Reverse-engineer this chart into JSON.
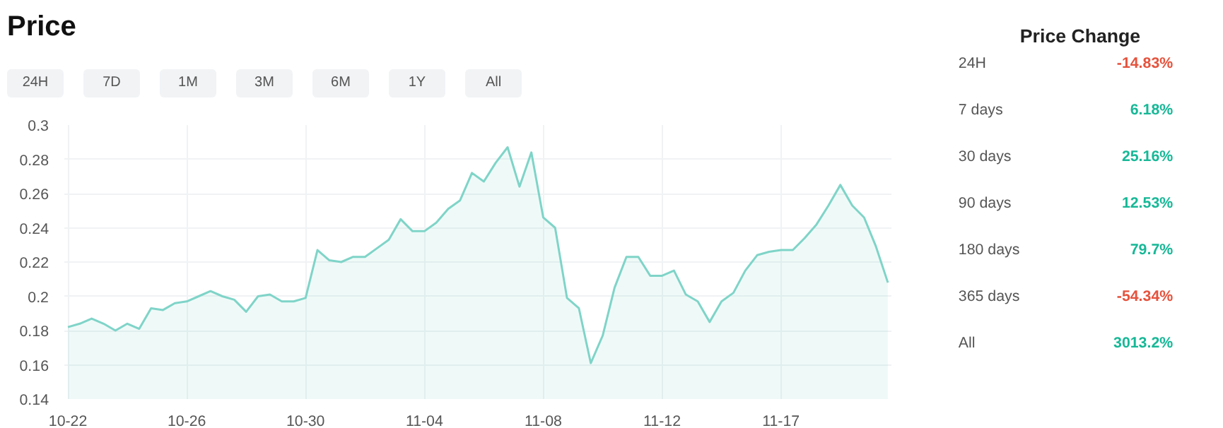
{
  "chart_data": [
    {
      "type": "area",
      "title": "Price",
      "annotations": [
        "24H",
        "7D",
        "1M",
        "3M",
        "6M",
        "1Y",
        "All"
      ],
      "categories": [
        "10-22",
        null,
        null,
        null,
        null,
        null,
        null,
        null,
        null,
        null,
        "10-26",
        null,
        null,
        null,
        null,
        null,
        null,
        null,
        null,
        null,
        "10-30",
        null,
        null,
        null,
        null,
        null,
        null,
        null,
        null,
        null,
        "11-04",
        null,
        null,
        null,
        null,
        null,
        null,
        null,
        null,
        null,
        "11-08",
        null,
        null,
        null,
        null,
        null,
        null,
        null,
        null,
        null,
        "11-12",
        null,
        null,
        null,
        null,
        null,
        null,
        null,
        null,
        null,
        "11-17",
        null,
        null,
        null,
        null,
        null,
        null,
        null,
        null,
        null
      ],
      "series": [
        {
          "color": "#7fd4c8",
          "values": [
            0.182,
            0.184,
            0.187,
            0.184,
            0.18,
            0.184,
            0.181,
            0.193,
            0.192,
            0.196,
            0.197,
            0.2,
            0.203,
            0.2,
            0.198,
            0.191,
            0.2,
            0.201,
            0.197,
            0.197,
            0.199,
            0.227,
            0.221,
            0.22,
            0.223,
            0.223,
            0.228,
            0.233,
            0.245,
            0.238,
            0.238,
            0.243,
            0.251,
            0.256,
            0.272,
            0.267,
            0.278,
            0.287,
            0.264,
            0.284,
            0.246,
            0.24,
            0.199,
            0.193,
            0.161,
            0.177,
            0.205,
            0.223,
            0.223,
            0.212,
            0.212,
            0.215,
            0.201,
            0.197,
            0.185,
            0.197,
            0.202,
            0.215,
            0.224,
            0.226,
            0.227,
            0.227,
            0.234,
            0.242,
            0.253,
            0.265,
            0.253,
            0.246,
            0.229,
            0.208
          ]
        }
      ],
      "ylim": [
        0.14,
        0.3
      ],
      "yticks": [
        0.14,
        0.16,
        0.18,
        0.2,
        0.22,
        0.24,
        0.26,
        0.28,
        0.3
      ],
      "grid": true
    },
    {
      "type": "other",
      "title": "Price Change",
      "categories": [
        "24H",
        "7 days",
        "30 days",
        "90 days",
        "180 days",
        "365 days",
        "All"
      ],
      "value_labels": [
        "-14.83%",
        "6.18%",
        "25.16%",
        "12.53%",
        "79.7%",
        "-54.34%",
        "3013.2%"
      ],
      "colors": [
        "#e5533d",
        "#17b897",
        "#17b897",
        "#17b897",
        "#17b897",
        "#e5533d",
        "#17b897"
      ]
    }
  ]
}
